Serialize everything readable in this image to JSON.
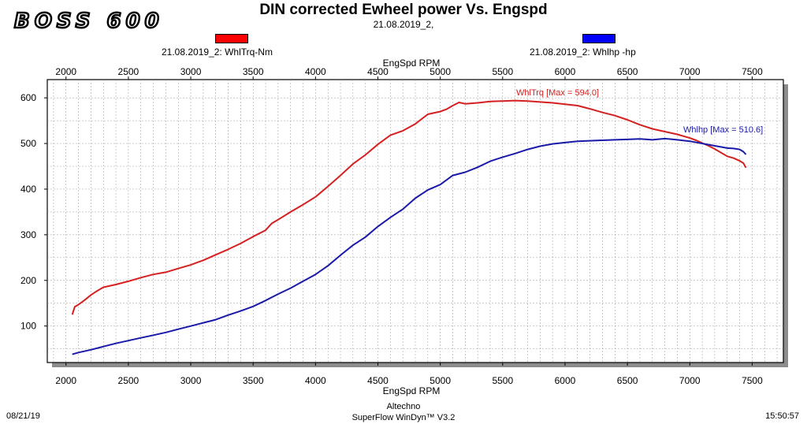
{
  "header": {
    "logo_text": "BOSS 600",
    "title": "DIN corrected Ewheel power Vs. Engspd",
    "subtitle": "21.08.2019_2,"
  },
  "legend": {
    "torque_label": "21.08.2019_2: WhlTrq-Nm",
    "power_label": "21.08.2019_2: Whlhp -hp",
    "torque_color": "#ff0000",
    "power_color": "#0000ff"
  },
  "footer": {
    "date": "08/21/19",
    "company": "Altechno",
    "software": "SuperFlow WinDyn™ V3.2",
    "time": "15:50:57"
  },
  "chart_data": {
    "type": "line",
    "title": "DIN corrected Ewheel power Vs. Engspd",
    "xlabel": "EngSpd RPM",
    "ylabel": "",
    "xlim": [
      1850,
      7750
    ],
    "ylim": [
      20,
      640
    ],
    "x_ticks": [
      2000,
      2500,
      3000,
      3500,
      4000,
      4500,
      5000,
      5500,
      6000,
      6500,
      7000,
      7500
    ],
    "y_ticks": [
      100,
      200,
      300,
      400,
      500,
      600
    ],
    "grid": true,
    "legend_position": "top",
    "annotations": [
      {
        "text": "WhlTrq [Max = 594.0]",
        "series": 0
      },
      {
        "text": "Whlhp  [Max = 510.6]",
        "series": 1
      }
    ],
    "series": [
      {
        "name": "21.08.2019_2: WhlTrq-Nm",
        "color": "#d42020",
        "x": [
          2050,
          2070,
          2100,
          2150,
          2200,
          2250,
          2300,
          2400,
          2500,
          2600,
          2700,
          2800,
          2900,
          3000,
          3100,
          3200,
          3300,
          3400,
          3500,
          3600,
          3650,
          3700,
          3800,
          3900,
          4000,
          4100,
          4200,
          4300,
          4400,
          4500,
          4600,
          4700,
          4800,
          4900,
          5000,
          5050,
          5100,
          5150,
          5200,
          5300,
          5400,
          5500,
          5600,
          5700,
          5800,
          5900,
          6000,
          6100,
          6200,
          6300,
          6400,
          6500,
          6600,
          6700,
          6800,
          6900,
          7000,
          7050,
          7100,
          7150,
          7200,
          7250,
          7300,
          7350,
          7400,
          7430,
          7450
        ],
        "values": [
          125,
          142,
          147,
          157,
          168,
          177,
          185,
          191,
          198,
          206,
          213,
          218,
          226,
          234,
          244,
          256,
          268,
          281,
          296,
          310,
          325,
          333,
          350,
          366,
          383,
          406,
          430,
          455,
          475,
          498,
          518,
          528,
          543,
          564,
          570,
          575,
          583,
          590,
          587,
          589,
          592,
          593,
          594,
          593,
          591,
          589,
          586,
          583,
          576,
          568,
          561,
          552,
          541,
          532,
          526,
          520,
          512,
          507,
          501,
          495,
          488,
          480,
          472,
          468,
          462,
          457,
          447
        ]
      },
      {
        "name": "21.08.2019_2: Whlhp -hp",
        "color": "#1a1aa8",
        "x": [
          2050,
          2100,
          2200,
          2300,
          2400,
          2500,
          2600,
          2700,
          2800,
          2900,
          3000,
          3100,
          3200,
          3300,
          3400,
          3500,
          3600,
          3700,
          3800,
          3900,
          4000,
          4100,
          4200,
          4300,
          4400,
          4500,
          4600,
          4700,
          4800,
          4900,
          5000,
          5100,
          5200,
          5300,
          5400,
          5500,
          5600,
          5700,
          5800,
          5900,
          6000,
          6100,
          6200,
          6300,
          6400,
          6500,
          6600,
          6700,
          6800,
          6900,
          7000,
          7100,
          7200,
          7300,
          7350,
          7400,
          7430,
          7450
        ],
        "values": [
          38,
          42,
          48,
          55,
          62,
          68,
          74,
          80,
          86,
          93,
          100,
          107,
          114,
          124,
          133,
          143,
          156,
          170,
          183,
          198,
          213,
          232,
          255,
          277,
          295,
          318,
          338,
          356,
          380,
          398,
          410,
          430,
          437,
          448,
          461,
          470,
          478,
          487,
          494,
          499,
          502,
          505,
          506,
          507,
          508,
          509,
          510,
          508,
          510.6,
          508,
          505,
          500,
          495,
          490,
          489,
          487,
          482,
          476
        ]
      }
    ]
  }
}
